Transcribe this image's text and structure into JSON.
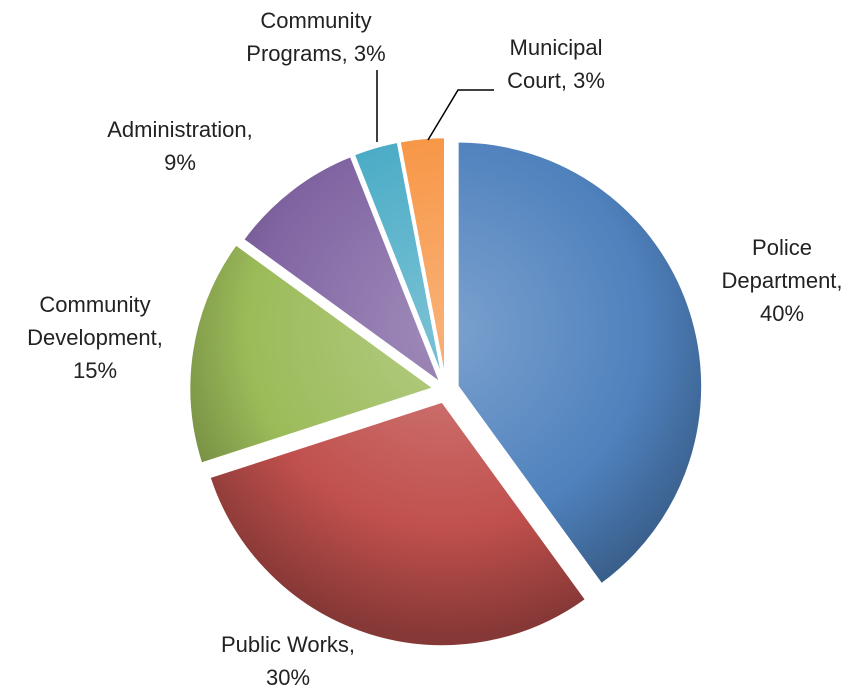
{
  "chart_data": {
    "type": "pie",
    "title": "",
    "unit": "%",
    "slices": [
      {
        "label": "Police Department",
        "value": 40,
        "value_label": "40%",
        "label_lines": [
          "Police",
          "Department,",
          "40%"
        ],
        "color": "#4F81BD"
      },
      {
        "label": "Public Works",
        "value": 30,
        "value_label": "30%",
        "label_lines": [
          "Public Works,",
          "30%"
        ],
        "color": "#C0504D"
      },
      {
        "label": "Community Development",
        "value": 15,
        "value_label": "15%",
        "label_lines": [
          "Community",
          "Development,",
          "15%"
        ],
        "color": "#9BBB59"
      },
      {
        "label": "Administration",
        "value": 9,
        "value_label": "9%",
        "label_lines": [
          "Administration,",
          "9%"
        ],
        "color": "#8064A2"
      },
      {
        "label": "Community Programs",
        "value": 3,
        "value_label": "3%",
        "label_lines": [
          "Community",
          "Programs, 3%"
        ],
        "color": "#4BACC6"
      },
      {
        "label": "Municipal Court",
        "value": 3,
        "value_label": "3%",
        "label_lines": [
          "Municipal",
          "Court, 3%"
        ],
        "color": "#F79646"
      }
    ],
    "start_angle_deg": 0,
    "direction": "clockwise",
    "exploded": true,
    "legend": "none"
  }
}
